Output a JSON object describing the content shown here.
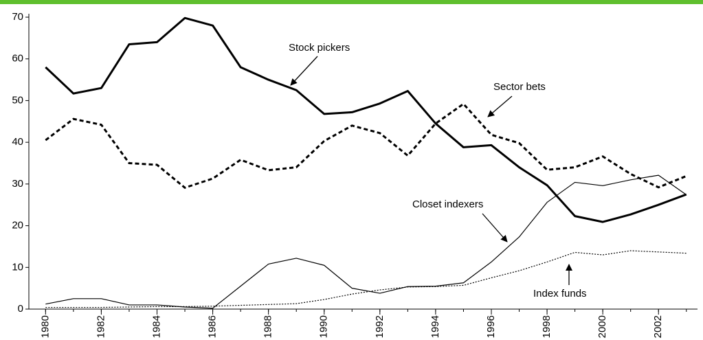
{
  "chart_data": {
    "type": "line",
    "x": [
      1980,
      1981,
      1982,
      1983,
      1984,
      1985,
      1986,
      1987,
      1988,
      1989,
      1990,
      1991,
      1992,
      1993,
      1994,
      1995,
      1996,
      1997,
      1998,
      1999,
      2000,
      2001,
      2002,
      2003
    ],
    "xlim": [
      1979.4,
      2003.4
    ],
    "xticks": [
      1980,
      1982,
      1984,
      1986,
      1988,
      1990,
      1992,
      1994,
      1996,
      1998,
      2000,
      2002
    ],
    "ylim": [
      0,
      70
    ],
    "yticks": [
      0,
      10,
      20,
      30,
      40,
      50,
      60,
      70
    ],
    "series": [
      {
        "name": "Stock pickers",
        "color": "#000000",
        "line_style": "solid",
        "line_width": 3,
        "values": [
          58,
          51.7,
          53,
          63.5,
          64,
          69.8,
          68,
          58,
          55,
          52.5,
          46.8,
          47.2,
          49.3,
          52.3,
          44.5,
          38.8,
          39.3,
          34,
          29.7,
          22.3,
          20.9,
          22.7,
          25,
          27.5
        ]
      },
      {
        "name": "Sector bets",
        "color": "#000000",
        "line_style": "dashed",
        "line_width": 3,
        "values": [
          40.5,
          45.6,
          44.2,
          35,
          34.6,
          29.1,
          31.3,
          35.8,
          33.3,
          34,
          40.3,
          44,
          42.2,
          36.8,
          44.5,
          49.2,
          41.8,
          39.8,
          33.4,
          34,
          36.6,
          32.4,
          29.2,
          31.9
        ]
      },
      {
        "name": "Closet indexers",
        "color": "#000000",
        "line_style": "solid",
        "line_width": 1.2,
        "values": [
          1.2,
          2.5,
          2.5,
          1,
          1,
          0.5,
          0.2,
          5.5,
          10.8,
          12.2,
          10.5,
          5,
          3.8,
          5.4,
          5.5,
          6.3,
          11.3,
          17.3,
          25.6,
          30.4,
          29.6,
          31,
          32.1,
          27.4
        ]
      },
      {
        "name": "Index funds",
        "color": "#000000",
        "line_style": "dotted",
        "line_width": 1.2,
        "values": [
          0.4,
          0.4,
          0.4,
          0.5,
          0.6,
          0.6,
          0.7,
          0.9,
          1.1,
          1.3,
          2.3,
          3.6,
          4.6,
          5.3,
          5.4,
          5.7,
          7.5,
          9.2,
          11.3,
          13.6,
          13,
          14,
          13.7,
          13.4
        ]
      }
    ],
    "header_color": "#5fbf2e"
  }
}
